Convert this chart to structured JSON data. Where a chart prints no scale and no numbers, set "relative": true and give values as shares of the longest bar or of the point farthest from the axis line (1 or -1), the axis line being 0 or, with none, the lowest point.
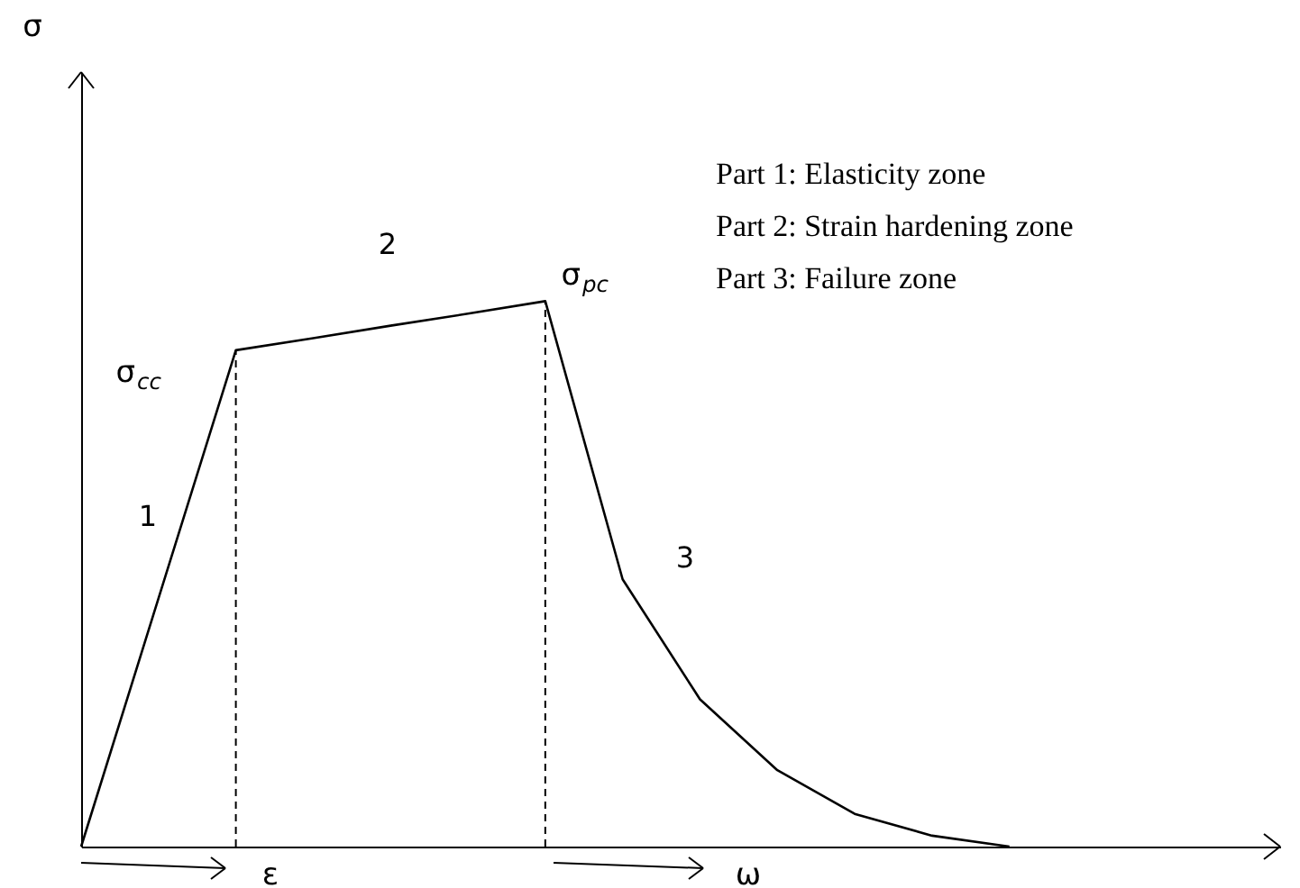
{
  "chart_data": {
    "type": "line",
    "relative": true,
    "ylabel": "σ",
    "categories": [
      null,
      null,
      null,
      null,
      null,
      null,
      null,
      null,
      null,
      null,
      null,
      null,
      null
    ],
    "series": [
      {
        "color": "#000000",
        "values": [
          0,
          0.455,
          0.91,
          0.932,
          0.955,
          0.977,
          1.0,
          0.49,
          0.27,
          0.14,
          0.06,
          0.02,
          0
        ]
      }
    ],
    "ylim": [
      0,
      1.42
    ],
    "marker": "none",
    "line_style": "solid",
    "annotations": [
      "σ$_{cc}$",
      "σ$_{pc}$",
      "1",
      "2",
      "3",
      "Part 1: Elasticity zone",
      "Part 2: Strain hardening zone",
      "Part 3: Failure zone",
      "ε",
      "ω"
    ]
  }
}
